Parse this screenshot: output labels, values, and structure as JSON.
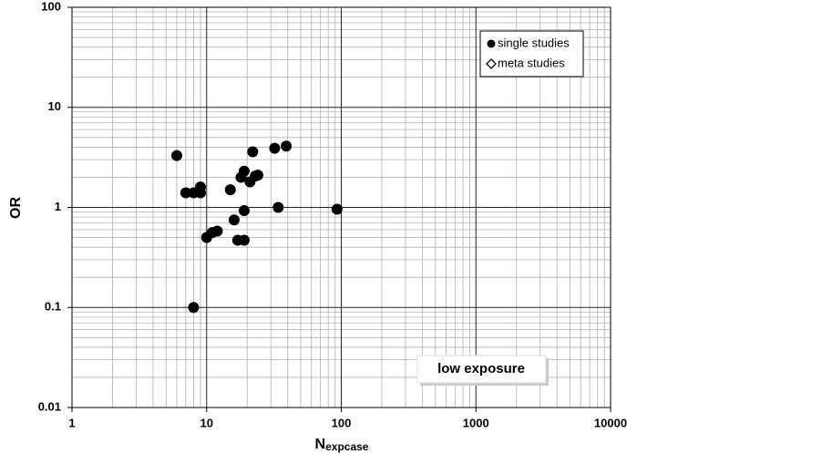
{
  "chart_data": {
    "type": "scatter",
    "xlabel": "N",
    "xlabel_sub": "expcase",
    "ylabel": "OR",
    "xscale": "log",
    "yscale": "log",
    "xlim": [
      1,
      10000
    ],
    "ylim": [
      0.01,
      100
    ],
    "xticks": [
      1,
      10,
      100,
      1000,
      10000
    ],
    "yticks": [
      0.01,
      0.1,
      1,
      10,
      100
    ],
    "grid": true,
    "minor_grid": true,
    "legend": "upper right",
    "annotation": "low exposure",
    "series": [
      {
        "name": "single studies",
        "marker": "circle",
        "color": "#000000",
        "x": [
          6,
          7,
          8,
          9,
          9,
          8,
          10,
          11,
          12,
          16,
          15,
          17,
          19,
          19,
          18,
          19,
          21,
          23,
          24,
          22,
          32,
          39,
          34,
          93
        ],
        "values": [
          3.3,
          1.4,
          1.4,
          1.6,
          1.4,
          0.1,
          0.5,
          0.56,
          0.58,
          0.75,
          1.5,
          0.47,
          0.47,
          0.93,
          2.0,
          2.3,
          1.8,
          2.06,
          2.1,
          3.6,
          3.9,
          4.1,
          1.0,
          0.96
        ]
      },
      {
        "name": "meta studies",
        "marker": "diamond",
        "color": "#000000",
        "x": [],
        "values": []
      }
    ]
  }
}
